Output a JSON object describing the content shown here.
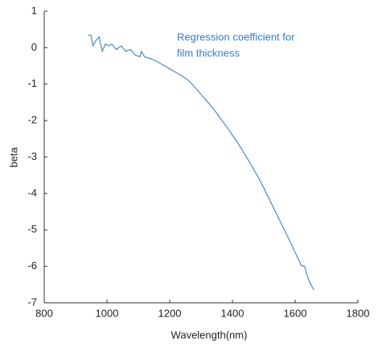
{
  "chart_data": {
    "type": "line",
    "ylabel": "beta",
    "xlabel": "Wavelength(nm)",
    "annotation": [
      "Regression coefficient for",
      "film thickness"
    ],
    "annotation_color": "#2f7fc1",
    "x": [
      940,
      950,
      955,
      965,
      975,
      985,
      995,
      1005,
      1015,
      1030,
      1045,
      1060,
      1075,
      1090,
      1105,
      1110,
      1120,
      1140,
      1160,
      1180,
      1200,
      1220,
      1240,
      1260,
      1280,
      1300,
      1320,
      1340,
      1360,
      1380,
      1400,
      1420,
      1440,
      1460,
      1480,
      1500,
      1520,
      1540,
      1560,
      1580,
      1600,
      1620,
      1630,
      1640,
      1650,
      1660
    ],
    "series": [
      {
        "color": "#4a8cc7",
        "values": [
          0.35,
          0.33,
          0.05,
          0.2,
          0.3,
          -0.1,
          0.1,
          0.05,
          0.1,
          -0.05,
          0.05,
          -0.1,
          -0.05,
          -0.2,
          -0.25,
          -0.1,
          -0.25,
          -0.3,
          -0.38,
          -0.48,
          -0.58,
          -0.68,
          -0.78,
          -0.9,
          -1.08,
          -1.28,
          -1.48,
          -1.68,
          -1.92,
          -2.15,
          -2.4,
          -2.65,
          -2.93,
          -3.22,
          -3.52,
          -3.85,
          -4.2,
          -4.55,
          -4.9,
          -5.25,
          -5.62,
          -5.98,
          -6.0,
          -6.3,
          -6.5,
          -6.65
        ]
      }
    ],
    "xlim": [
      800,
      1800
    ],
    "xticks": [
      800,
      1000,
      1200,
      1400,
      1600,
      1800
    ],
    "ylim": [
      -7,
      1
    ],
    "yticks": [
      -7,
      -6,
      -5,
      -4,
      -3,
      -2,
      -1,
      0,
      1
    ]
  }
}
